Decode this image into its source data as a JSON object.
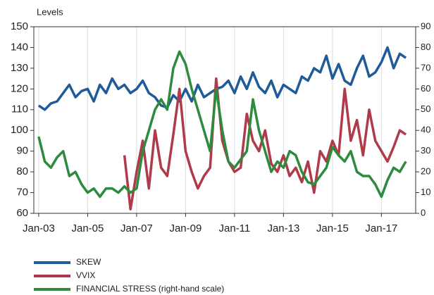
{
  "chart_data": {
    "type": "line",
    "y_label": "Levels",
    "x": [
      2003,
      2003.25,
      2003.5,
      2003.75,
      2004,
      2004.25,
      2004.5,
      2004.75,
      2005,
      2005.25,
      2005.5,
      2005.75,
      2006,
      2006.25,
      2006.5,
      2006.75,
      2007,
      2007.25,
      2007.5,
      2007.75,
      2008,
      2008.25,
      2008.5,
      2008.75,
      2009,
      2009.25,
      2009.5,
      2009.75,
      2010,
      2010.25,
      2010.5,
      2010.75,
      2011,
      2011.25,
      2011.5,
      2011.75,
      2012,
      2012.25,
      2012.5,
      2012.75,
      2013,
      2013.25,
      2013.5,
      2013.75,
      2014,
      2014.25,
      2014.5,
      2014.75,
      2015,
      2015.25,
      2015.5,
      2015.75,
      2016,
      2016.25,
      2016.5,
      2016.75,
      2017,
      2017.25,
      2017.5,
      2017.75,
      2018
    ],
    "series": [
      {
        "name": "SKEW",
        "color": "#1f5a99",
        "values": [
          112,
          110,
          113,
          114,
          118,
          122,
          116,
          119,
          120,
          114,
          122,
          118,
          125,
          120,
          122,
          118,
          120,
          124,
          118,
          116,
          112,
          111,
          117,
          114,
          120,
          114,
          122,
          116,
          118,
          120,
          121,
          124,
          118,
          126,
          120,
          128,
          121,
          118,
          124,
          116,
          122,
          120,
          118,
          126,
          124,
          130,
          128,
          136,
          125,
          132,
          124,
          122,
          130,
          136,
          126,
          128,
          133,
          140,
          130,
          137,
          135
        ]
      },
      {
        "name": "VVIX",
        "color": "#b03a4a",
        "values": [
          null,
          null,
          null,
          null,
          null,
          null,
          null,
          null,
          null,
          null,
          null,
          null,
          null,
          null,
          88,
          62,
          80,
          95,
          72,
          100,
          82,
          78,
          98,
          120,
          90,
          80,
          72,
          78,
          82,
          125,
          95,
          85,
          80,
          82,
          108,
          95,
          90,
          100,
          84,
          80,
          88,
          78,
          82,
          75,
          85,
          70,
          90,
          85,
          95,
          88,
          120,
          95,
          105,
          88,
          110,
          95,
          90,
          85,
          92,
          100,
          98
        ]
      },
      {
        "name": "FINANCIAL STRESS (right-hand scale)",
        "color": "#2e8b3e",
        "axis": "y2",
        "values": [
          37,
          25,
          22,
          27,
          30,
          18,
          20,
          14,
          10,
          12,
          8,
          12,
          12,
          10,
          13,
          10,
          12,
          30,
          40,
          50,
          55,
          50,
          70,
          78,
          72,
          60,
          50,
          40,
          30,
          60,
          40,
          25,
          22,
          26,
          30,
          55,
          40,
          30,
          20,
          25,
          22,
          30,
          28,
          20,
          15,
          14,
          18,
          22,
          32,
          28,
          25,
          30,
          20,
          18,
          18,
          14,
          8,
          16,
          22,
          20,
          25
        ]
      }
    ],
    "xlim": [
      2002.8,
      2018.4
    ],
    "xticks": [
      {
        "value": 2003,
        "label": "Jan-03"
      },
      {
        "value": 2005,
        "label": "Jan-05"
      },
      {
        "value": 2007,
        "label": "Jan-07"
      },
      {
        "value": 2009,
        "label": "Jan-09"
      },
      {
        "value": 2011,
        "label": "Jan-11"
      },
      {
        "value": 2013,
        "label": "Jan-13"
      },
      {
        "value": 2015,
        "label": "Jan-15"
      },
      {
        "value": 2017,
        "label": "Jan-17"
      }
    ],
    "ylim": [
      60,
      150
    ],
    "yticks": [
      60,
      70,
      80,
      90,
      100,
      110,
      120,
      130,
      140,
      150
    ],
    "y2lim": [
      0,
      90
    ],
    "y2ticks": [
      0,
      10,
      20,
      30,
      40,
      50,
      60,
      70,
      80,
      90
    ],
    "grid": true,
    "legend": "bottom"
  }
}
